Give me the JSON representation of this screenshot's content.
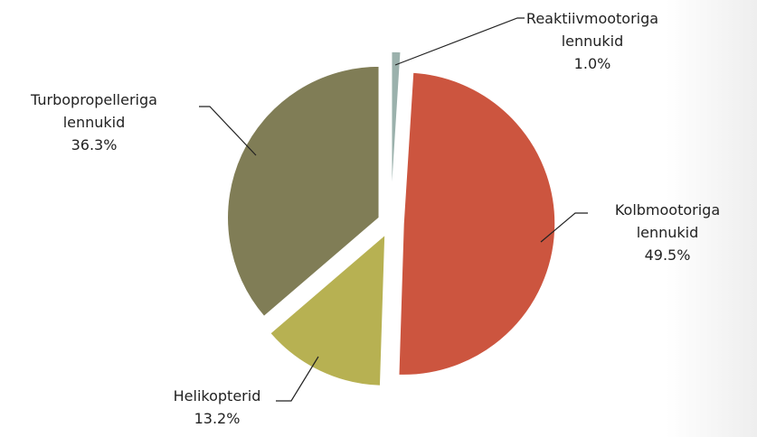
{
  "chart_data": {
    "type": "pie",
    "categories": [
      "Reaktiivmootoriga lennukid",
      "Kolbmootoriga lennukid",
      "Helikopterid",
      "Turbopropelleriga lennukid"
    ],
    "values": [
      1.0,
      49.5,
      13.2,
      36.3
    ],
    "value_labels": [
      "1.0%",
      "49.5%",
      "13.2%",
      "36.3%"
    ],
    "colors": [
      "#9bb1ac",
      "#cc553f",
      "#b7b152",
      "#807d56"
    ]
  }
}
